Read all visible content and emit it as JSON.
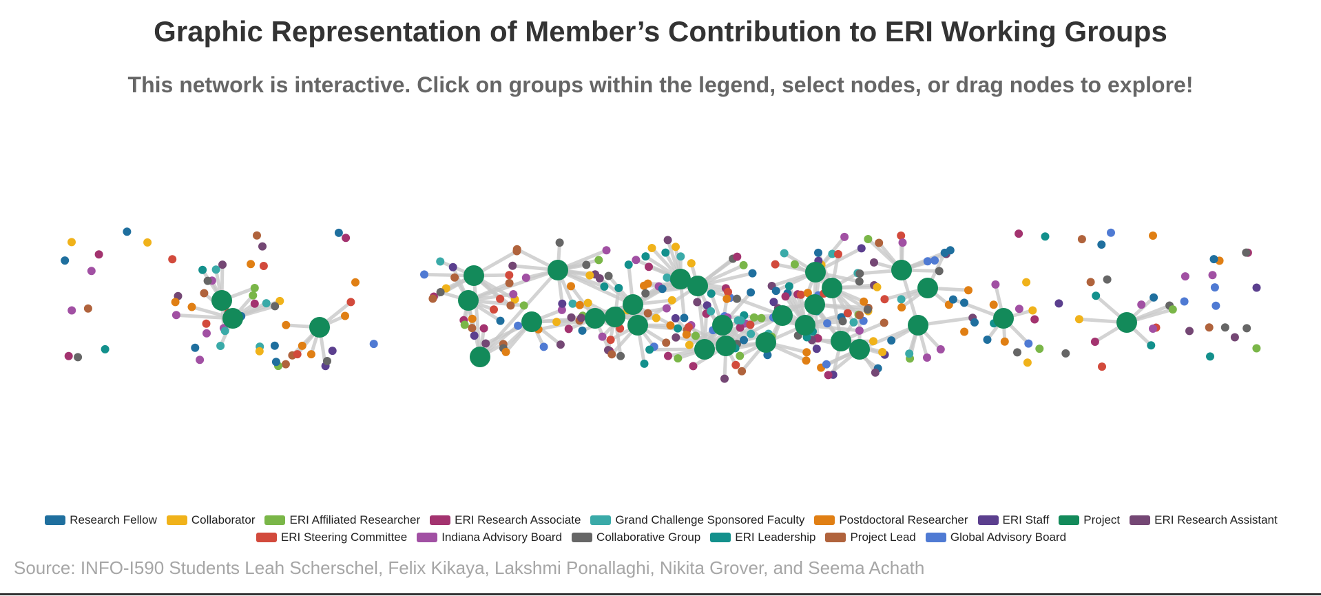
{
  "title": "Graphic Representation of Member’s Contribution to ERI Working Groups",
  "subtitle": "This network is interactive. Click on groups within the legend, select nodes, or drag nodes to explore!",
  "source": "Source: INFO-I590 Students Leah Scherschel, Felix Kikaya, Lakshmi Ponallaghi, Nikita Grover, and Seema Achath",
  "legend": [
    {
      "label": "Research Fellow",
      "color": "#1f6f9e"
    },
    {
      "label": "Collaborator",
      "color": "#f0b21a"
    },
    {
      "label": "ERI Affiliated Researcher",
      "color": "#7ab648"
    },
    {
      "label": "ERI Research Associate",
      "color": "#a3336f"
    },
    {
      "label": "Grand Challenge Sponsored Faculty",
      "color": "#3aaaa8"
    },
    {
      "label": "Postdoctoral Researcher",
      "color": "#e07f14"
    },
    {
      "label": "ERI Staff",
      "color": "#5b3f8e"
    },
    {
      "label": "Project",
      "color": "#138a5a"
    },
    {
      "label": "ERI Research Assistant",
      "color": "#744774"
    },
    {
      "label": "ERI Steering Committee",
      "color": "#d24a3c"
    },
    {
      "label": "Indiana Advisory Board",
      "color": "#a150a3"
    },
    {
      "label": "Collaborative Group",
      "color": "#666666"
    },
    {
      "label": "ERI Leadership",
      "color": "#13908c"
    },
    {
      "label": "Project Lead",
      "color": "#b0633c"
    },
    {
      "label": "Global Advisory Board",
      "color": "#4f7ad3"
    }
  ],
  "network": {
    "node_type": "Project",
    "link_color": "#c8c8c8"
  }
}
